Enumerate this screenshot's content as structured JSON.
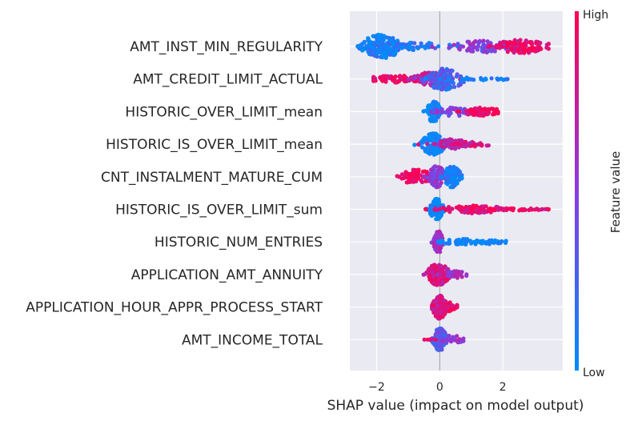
{
  "chart_data": {
    "type": "scatter",
    "subtype": "shap-beeswarm",
    "title": "",
    "xlabel": "SHAP value (impact on model output)",
    "ylabel": "",
    "xlim": [
      -2.85,
      3.9
    ],
    "xticks": [
      -2,
      0,
      2
    ],
    "xtick_labels": [
      "−2",
      "0",
      "2"
    ],
    "zero_line": 0,
    "grid": true,
    "colorbar": {
      "label": "Feature value",
      "high": "High",
      "low": "Low",
      "low_color": "#008bfb",
      "high_color": "#ff0052"
    },
    "features": [
      {
        "name": "AMT_INST_MIN_REGULARITY",
        "range": [
          -2.6,
          3.45
        ],
        "clusters": [
          {
            "center": -1.85,
            "spread": 0.35,
            "width": 1.0,
            "value": 0.05,
            "n": 170
          },
          {
            "center": -0.9,
            "spread": 0.7,
            "width": 0.35,
            "value": 0.15,
            "n": 50
          },
          {
            "center": 1.5,
            "spread": 0.6,
            "width": 0.5,
            "value": 0.5,
            "n": 80
          },
          {
            "center": 2.6,
            "spread": 0.5,
            "width": 0.55,
            "value": 0.95,
            "n": 100
          }
        ]
      },
      {
        "name": "AMT_CREDIT_LIMIT_ACTUAL",
        "range": [
          -2.1,
          2.15
        ],
        "clusters": [
          {
            "center": -1.3,
            "spread": 0.55,
            "width": 0.3,
            "value": 0.95,
            "n": 70
          },
          {
            "center": -0.3,
            "spread": 0.3,
            "width": 0.55,
            "value": 0.7,
            "n": 90
          },
          {
            "center": 0.15,
            "spread": 0.35,
            "width": 0.9,
            "value": 0.25,
            "n": 120
          },
          {
            "center": 1.3,
            "spread": 0.6,
            "width": 0.1,
            "value": 0.0,
            "n": 25
          }
        ]
      },
      {
        "name": "HISTORIC_OVER_LIMIT_mean",
        "range": [
          -0.65,
          1.85
        ],
        "clusters": [
          {
            "center": -0.2,
            "spread": 0.12,
            "width": 0.9,
            "value": 0.0,
            "n": 80
          },
          {
            "center": 0.5,
            "spread": 0.35,
            "width": 0.4,
            "value": 0.45,
            "n": 60
          },
          {
            "center": 1.35,
            "spread": 0.35,
            "width": 0.35,
            "value": 0.95,
            "n": 70
          }
        ]
      },
      {
        "name": "HISTORIC_IS_OVER_LIMIT_mean",
        "range": [
          -0.8,
          1.55
        ],
        "clusters": [
          {
            "center": -0.2,
            "spread": 0.2,
            "width": 0.9,
            "value": 0.0,
            "n": 140
          },
          {
            "center": 0.45,
            "spread": 0.3,
            "width": 0.45,
            "value": 0.75,
            "n": 70
          },
          {
            "center": 1.1,
            "spread": 0.3,
            "width": 0.2,
            "value": 0.8,
            "n": 25
          }
        ]
      },
      {
        "name": "CNT_INSTALMENT_MATURE_CUM",
        "range": [
          -1.35,
          0.7
        ],
        "clusters": [
          {
            "center": -0.75,
            "spread": 0.3,
            "width": 0.6,
            "value": 0.95,
            "n": 80
          },
          {
            "center": -0.1,
            "spread": 0.15,
            "width": 0.9,
            "value": 0.5,
            "n": 90
          },
          {
            "center": 0.4,
            "spread": 0.15,
            "width": 0.9,
            "value": 0.05,
            "n": 80
          }
        ]
      },
      {
        "name": "HISTORIC_IS_OVER_LIMIT_sum",
        "range": [
          -0.45,
          3.45
        ],
        "clusters": [
          {
            "center": -0.1,
            "spread": 0.12,
            "width": 0.9,
            "value": 0.0,
            "n": 120
          },
          {
            "center": 1.0,
            "spread": 0.6,
            "width": 0.35,
            "value": 0.9,
            "n": 90
          },
          {
            "center": 2.4,
            "spread": 0.5,
            "width": 0.1,
            "value": 0.95,
            "n": 30
          },
          {
            "center": 3.35,
            "spread": 0.08,
            "width": 0.1,
            "value": 0.95,
            "n": 6
          }
        ]
      },
      {
        "name": "HISTORIC_NUM_ENTRIES",
        "range": [
          -0.4,
          2.1
        ],
        "clusters": [
          {
            "center": -0.05,
            "spread": 0.08,
            "width": 0.95,
            "value": 0.6,
            "n": 90
          },
          {
            "center": 0.75,
            "spread": 0.4,
            "width": 0.25,
            "value": 0.0,
            "n": 50
          },
          {
            "center": 1.7,
            "spread": 0.25,
            "width": 0.2,
            "value": 0.0,
            "n": 30
          }
        ]
      },
      {
        "name": "APPLICATION_AMT_ANNUITY",
        "range": [
          -0.6,
          0.85
        ],
        "clusters": [
          {
            "center": -0.05,
            "spread": 0.2,
            "width": 0.9,
            "value": 0.8,
            "n": 150
          },
          {
            "center": 0.5,
            "spread": 0.2,
            "width": 0.3,
            "value": 0.55,
            "n": 30
          }
        ]
      },
      {
        "name": "APPLICATION_HOUR_APPR_PROCESS_START",
        "range": [
          -0.25,
          0.55
        ],
        "clusters": [
          {
            "center": 0.0,
            "spread": 0.12,
            "width": 1.0,
            "value": 0.85,
            "n": 170
          },
          {
            "center": 0.35,
            "spread": 0.12,
            "width": 0.4,
            "value": 0.9,
            "n": 30
          }
        ]
      },
      {
        "name": "AMT_INCOME_TOTAL",
        "range": [
          -0.55,
          0.75
        ],
        "clusters": [
          {
            "center": 0.0,
            "spread": 0.12,
            "width": 0.95,
            "value": 0.3,
            "n": 140
          },
          {
            "center": 0.4,
            "spread": 0.2,
            "width": 0.35,
            "value": 0.55,
            "n": 35
          },
          {
            "center": -0.35,
            "spread": 0.1,
            "width": 0.1,
            "value": 0.9,
            "n": 6
          }
        ]
      }
    ]
  }
}
